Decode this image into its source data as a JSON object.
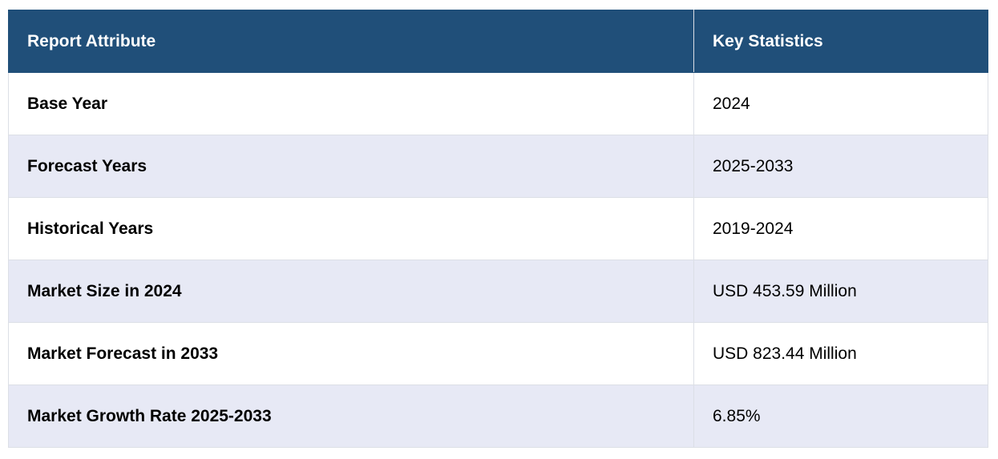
{
  "table": {
    "headers": [
      "Report Attribute",
      "Key Statistics"
    ],
    "rows": [
      {
        "attribute": "Base Year",
        "value": "2024"
      },
      {
        "attribute": "Forecast Years",
        "value": "2025-2033"
      },
      {
        "attribute": "Historical Years",
        "value": "2019-2024"
      },
      {
        "attribute": "Market Size in 2024",
        "value": "USD 453.59 Million"
      },
      {
        "attribute": "Market Forecast in 2033",
        "value": "USD 823.44 Million"
      },
      {
        "attribute": "Market Growth Rate 2025-2033",
        "value": "6.85%"
      }
    ]
  },
  "colors": {
    "header_bg": "#204f79",
    "header_text": "#ffffff",
    "row_alt_bg": "#e7e9f5",
    "border": "#dcdfe6"
  }
}
